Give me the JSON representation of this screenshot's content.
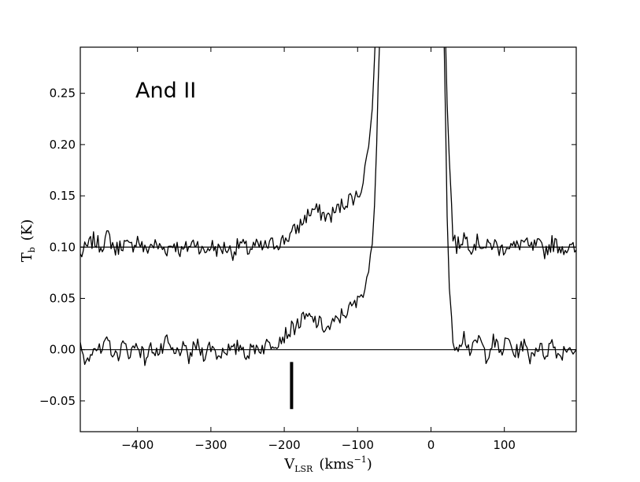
{
  "chart_data": {
    "type": "line",
    "annotation": "And II",
    "xlabel": {
      "main": "V",
      "sub": "LSR",
      "unit": "(kms",
      "exp": "−1",
      "close": ")"
    },
    "ylabel": {
      "main": "T",
      "sub": "b",
      "unit": "(K)"
    },
    "xlim": [
      -478,
      198
    ],
    "ylim": [
      -0.08,
      0.295
    ],
    "x_ticks": [
      -400,
      -300,
      -200,
      -100,
      0,
      100
    ],
    "x_tick_labels": [
      "−400",
      "−300",
      "−200",
      "−100",
      "0",
      "100"
    ],
    "y_ticks": [
      -0.05,
      0.0,
      0.05,
      0.1,
      0.15,
      0.2,
      0.25
    ],
    "y_tick_labels": [
      "−0.05",
      "0.00",
      "0.05",
      "0.10",
      "0.15",
      "0.20",
      "0.25"
    ],
    "grid": false,
    "baselines": [
      0.0,
      0.1
    ],
    "marker": {
      "x": -190,
      "y_range": [
        -0.058,
        -0.012
      ]
    },
    "series": [
      {
        "offset": 0.1,
        "points": [
          [
            -478,
            0.092
          ],
          [
            -470,
            0.099
          ],
          [
            -460,
            0.107
          ],
          [
            -450,
            0.101
          ],
          [
            -440,
            0.111
          ],
          [
            -430,
            0.097
          ],
          [
            -420,
            0.104
          ],
          [
            -410,
            0.099
          ],
          [
            -400,
            0.108
          ],
          [
            -390,
            0.096
          ],
          [
            -380,
            0.103
          ],
          [
            -370,
            0.1
          ],
          [
            -360,
            0.098
          ],
          [
            -350,
            0.104
          ],
          [
            -340,
            0.095
          ],
          [
            -330,
            0.101
          ],
          [
            -320,
            0.106
          ],
          [
            -310,
            0.094
          ],
          [
            -300,
            0.102
          ],
          [
            -290,
            0.097
          ],
          [
            -280,
            0.1
          ],
          [
            -270,
            0.095
          ],
          [
            -260,
            0.104
          ],
          [
            -250,
            0.097
          ],
          [
            -240,
            0.101
          ],
          [
            -230,
            0.099
          ],
          [
            -220,
            0.102
          ],
          [
            -210,
            0.104
          ],
          [
            -200,
            0.107
          ],
          [
            -190,
            0.113
          ],
          [
            -180,
            0.12
          ],
          [
            -170,
            0.13
          ],
          [
            -160,
            0.137
          ],
          [
            -150,
            0.133
          ],
          [
            -140,
            0.129
          ],
          [
            -130,
            0.135
          ],
          [
            -120,
            0.142
          ],
          [
            -110,
            0.148
          ],
          [
            -100,
            0.15
          ],
          [
            -95,
            0.158
          ],
          [
            -90,
            0.178
          ],
          [
            -85,
            0.198
          ],
          [
            -80,
            0.235
          ],
          [
            -78,
            0.27
          ],
          [
            -76,
            0.3
          ],
          [
            20,
            0.3
          ],
          [
            22,
            0.24
          ],
          [
            25,
            0.185
          ],
          [
            28,
            0.14
          ],
          [
            30,
            0.112
          ],
          [
            35,
            0.1
          ],
          [
            45,
            0.111
          ],
          [
            55,
            0.101
          ],
          [
            65,
            0.106
          ],
          [
            75,
            0.099
          ],
          [
            85,
            0.104
          ],
          [
            95,
            0.097
          ],
          [
            105,
            0.103
          ],
          [
            115,
            0.099
          ],
          [
            125,
            0.106
          ],
          [
            135,
            0.098
          ],
          [
            145,
            0.102
          ],
          [
            155,
            0.096
          ],
          [
            165,
            0.104
          ],
          [
            175,
            0.101
          ],
          [
            185,
            0.099
          ],
          [
            198,
            0.097
          ]
        ]
      },
      {
        "offset": 0.0,
        "points": [
          [
            -478,
            0.002
          ],
          [
            -470,
            -0.012
          ],
          [
            -460,
            0.006
          ],
          [
            -450,
            -0.004
          ],
          [
            -440,
            0.008
          ],
          [
            -430,
            -0.008
          ],
          [
            -420,
            0.004
          ],
          [
            -410,
            -0.003
          ],
          [
            -400,
            0.006
          ],
          [
            -390,
            -0.009
          ],
          [
            -380,
            0.003
          ],
          [
            -370,
            -0.004
          ],
          [
            -360,
            0.007
          ],
          [
            -350,
            -0.006
          ],
          [
            -340,
            0.002
          ],
          [
            -330,
            -0.008
          ],
          [
            -320,
            0.005
          ],
          [
            -310,
            -0.004
          ],
          [
            -300,
            0.004
          ],
          [
            -290,
            -0.006
          ],
          [
            -280,
            0.002
          ],
          [
            -270,
            -0.003
          ],
          [
            -260,
            0.005
          ],
          [
            -250,
            -0.005
          ],
          [
            -240,
            0.003
          ],
          [
            -230,
            0.002
          ],
          [
            -220,
            0.006
          ],
          [
            -210,
            0.009
          ],
          [
            -200,
            0.014
          ],
          [
            -190,
            0.02
          ],
          [
            -180,
            0.026
          ],
          [
            -170,
            0.031
          ],
          [
            -160,
            0.029
          ],
          [
            -150,
            0.024
          ],
          [
            -140,
            0.02
          ],
          [
            -130,
            0.027
          ],
          [
            -120,
            0.035
          ],
          [
            -110,
            0.04
          ],
          [
            -100,
            0.046
          ],
          [
            -95,
            0.055
          ],
          [
            -90,
            0.063
          ],
          [
            -85,
            0.078
          ],
          [
            -80,
            0.103
          ],
          [
            -77,
            0.14
          ],
          [
            -74,
            0.2
          ],
          [
            -72,
            0.26
          ],
          [
            -70,
            0.3
          ],
          [
            18,
            0.3
          ],
          [
            20,
            0.22
          ],
          [
            22,
            0.13
          ],
          [
            25,
            0.06
          ],
          [
            28,
            0.025
          ],
          [
            30,
            0.01
          ],
          [
            35,
            0.004
          ],
          [
            45,
            0.014
          ],
          [
            55,
            -0.004
          ],
          [
            65,
            0.012
          ],
          [
            75,
            -0.006
          ],
          [
            85,
            0.008
          ],
          [
            95,
            -0.003
          ],
          [
            105,
            0.01
          ],
          [
            115,
            -0.005
          ],
          [
            125,
            0.006
          ],
          [
            135,
            -0.007
          ],
          [
            145,
            0.004
          ],
          [
            155,
            -0.004
          ],
          [
            165,
            0.007
          ],
          [
            175,
            -0.006
          ],
          [
            185,
            0.003
          ],
          [
            198,
            0.0
          ]
        ]
      }
    ]
  }
}
